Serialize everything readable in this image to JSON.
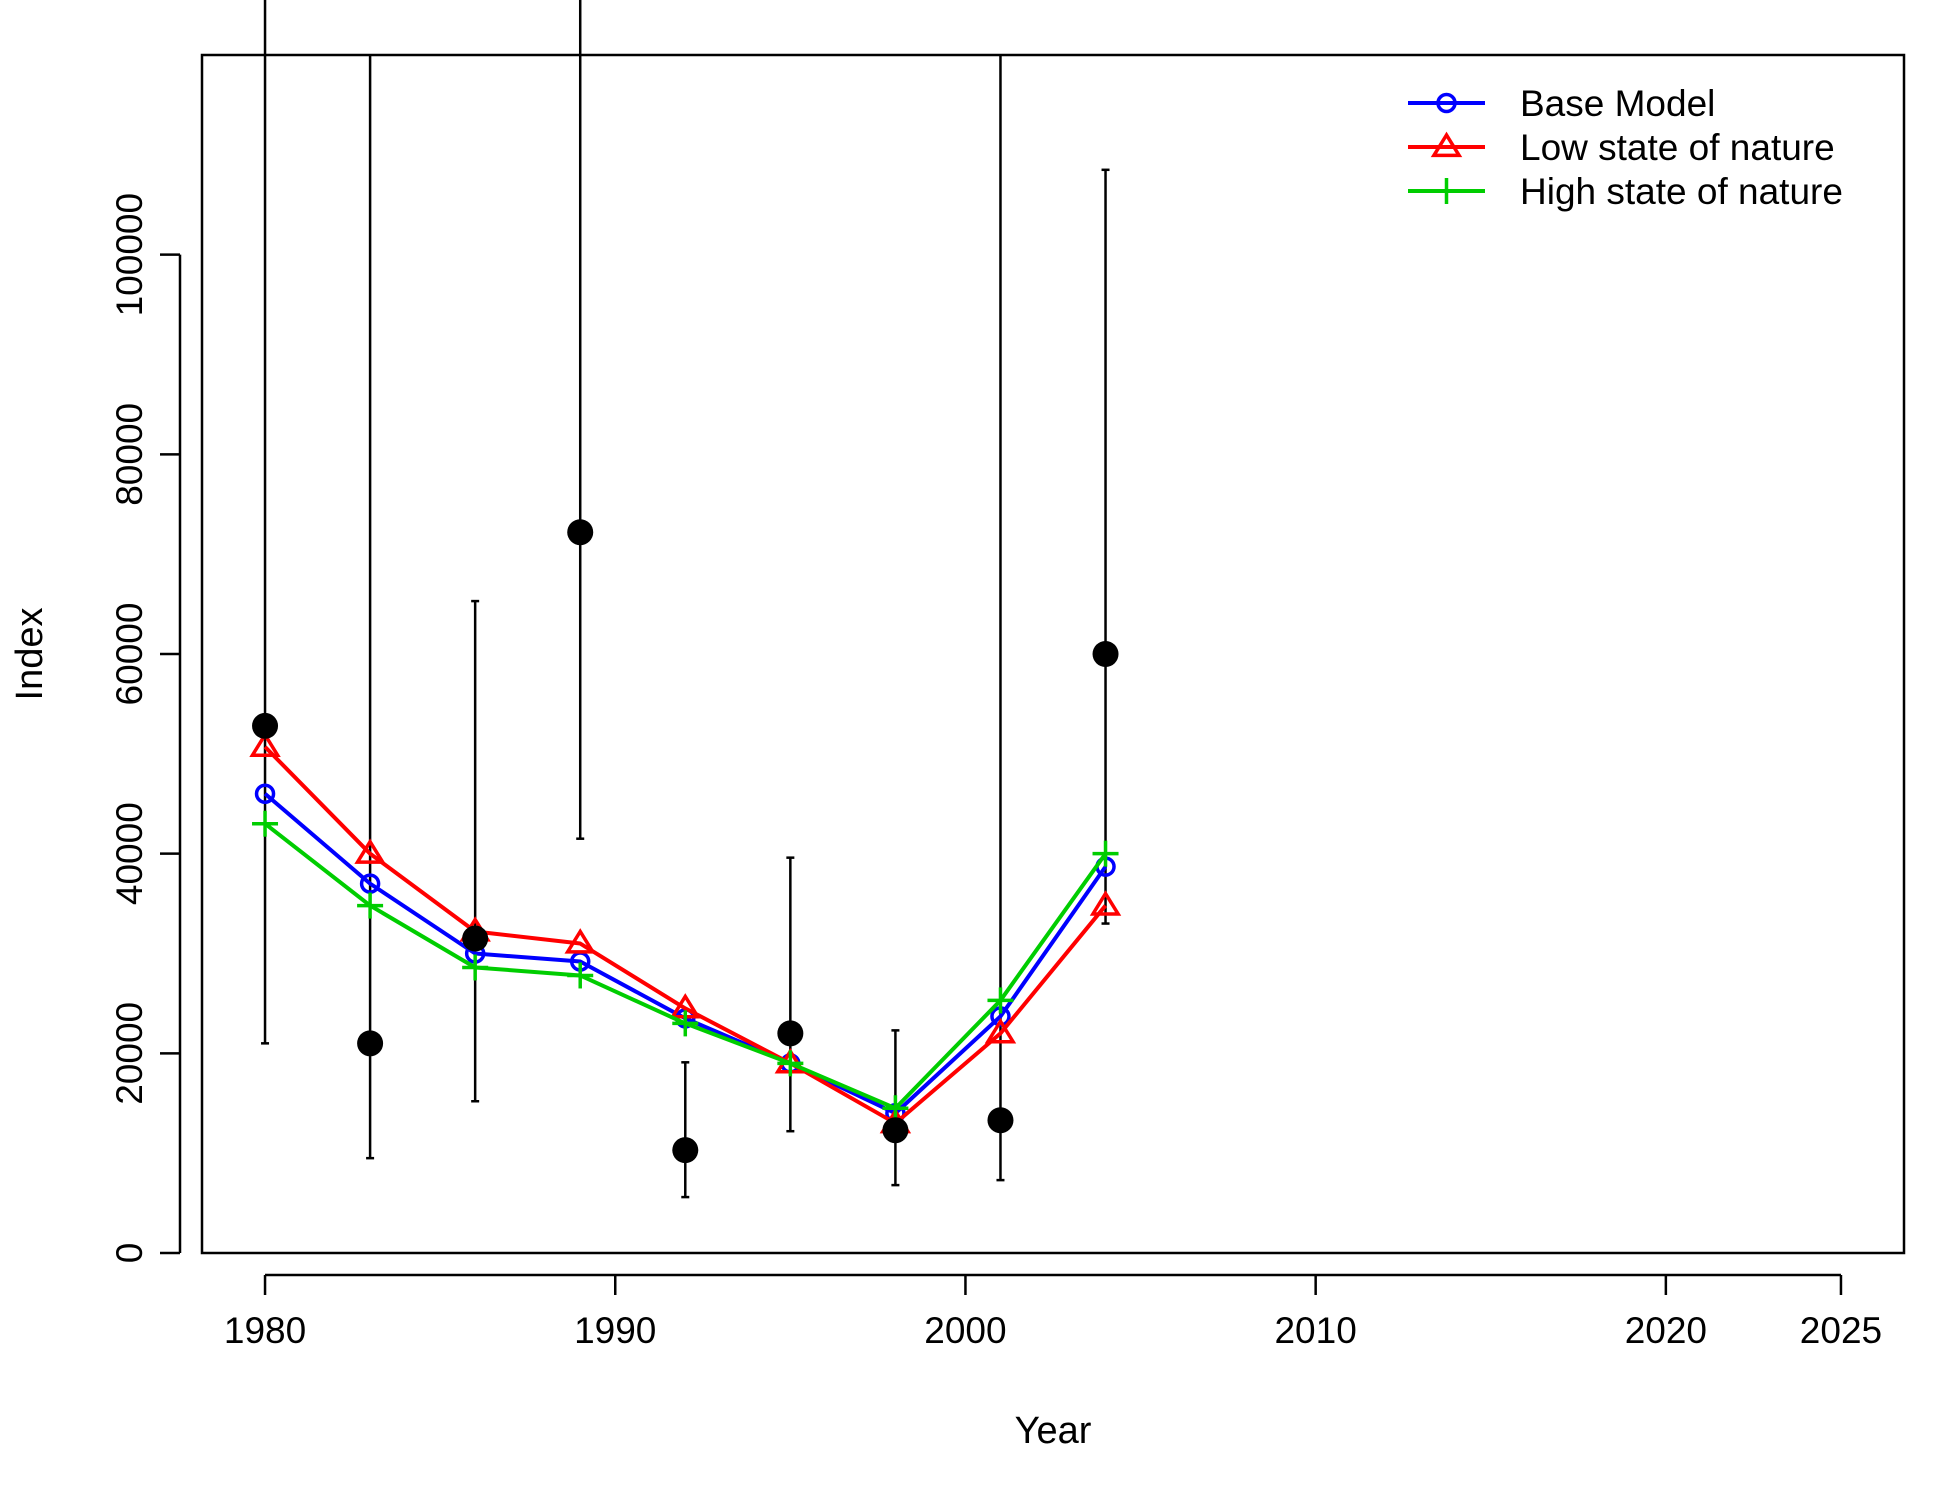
{
  "chart_data": {
    "type": "line",
    "title": "",
    "xlabel": "Year",
    "ylabel": "Index",
    "xlim": [
      1978.2,
      2026.8
    ],
    "ylim": [
      0,
      120000
    ],
    "x_ticks": [
      1980,
      1990,
      2000,
      2010,
      2020,
      2025
    ],
    "y_ticks": [
      0,
      20000,
      40000,
      60000,
      80000,
      100000
    ],
    "grid": false,
    "legend_position": "top-right",
    "observed": {
      "x": [
        1980,
        1983,
        1986,
        1989,
        1992,
        1995,
        1998,
        2001,
        2004
      ],
      "y": [
        52800,
        21000,
        31500,
        72200,
        10300,
        22000,
        12300,
        13300,
        60000
      ],
      "lower": [
        21000,
        9500,
        15200,
        41500,
        5600,
        12200,
        6800,
        7300,
        33000
      ],
      "upper": [
        131500,
        null,
        65300,
        126000,
        19100,
        39600,
        22300,
        null,
        108500
      ],
      "color": "#000000"
    },
    "series": [
      {
        "name": "Base Model",
        "color": "#0000FF",
        "marker": "circle",
        "values": [
          46000,
          37000,
          30000,
          29200,
          23500,
          19000,
          14000,
          23700,
          38700
        ]
      },
      {
        "name": "Low state of nature",
        "color": "#FF0000",
        "marker": "triangle",
        "values": [
          50700,
          40000,
          32200,
          31000,
          24500,
          19000,
          13000,
          22000,
          34800
        ]
      },
      {
        "name": "High state of nature",
        "color": "#00CD00",
        "marker": "plus",
        "values": [
          43000,
          34800,
          28600,
          27800,
          23000,
          19000,
          14500,
          25300,
          40000
        ]
      }
    ]
  }
}
